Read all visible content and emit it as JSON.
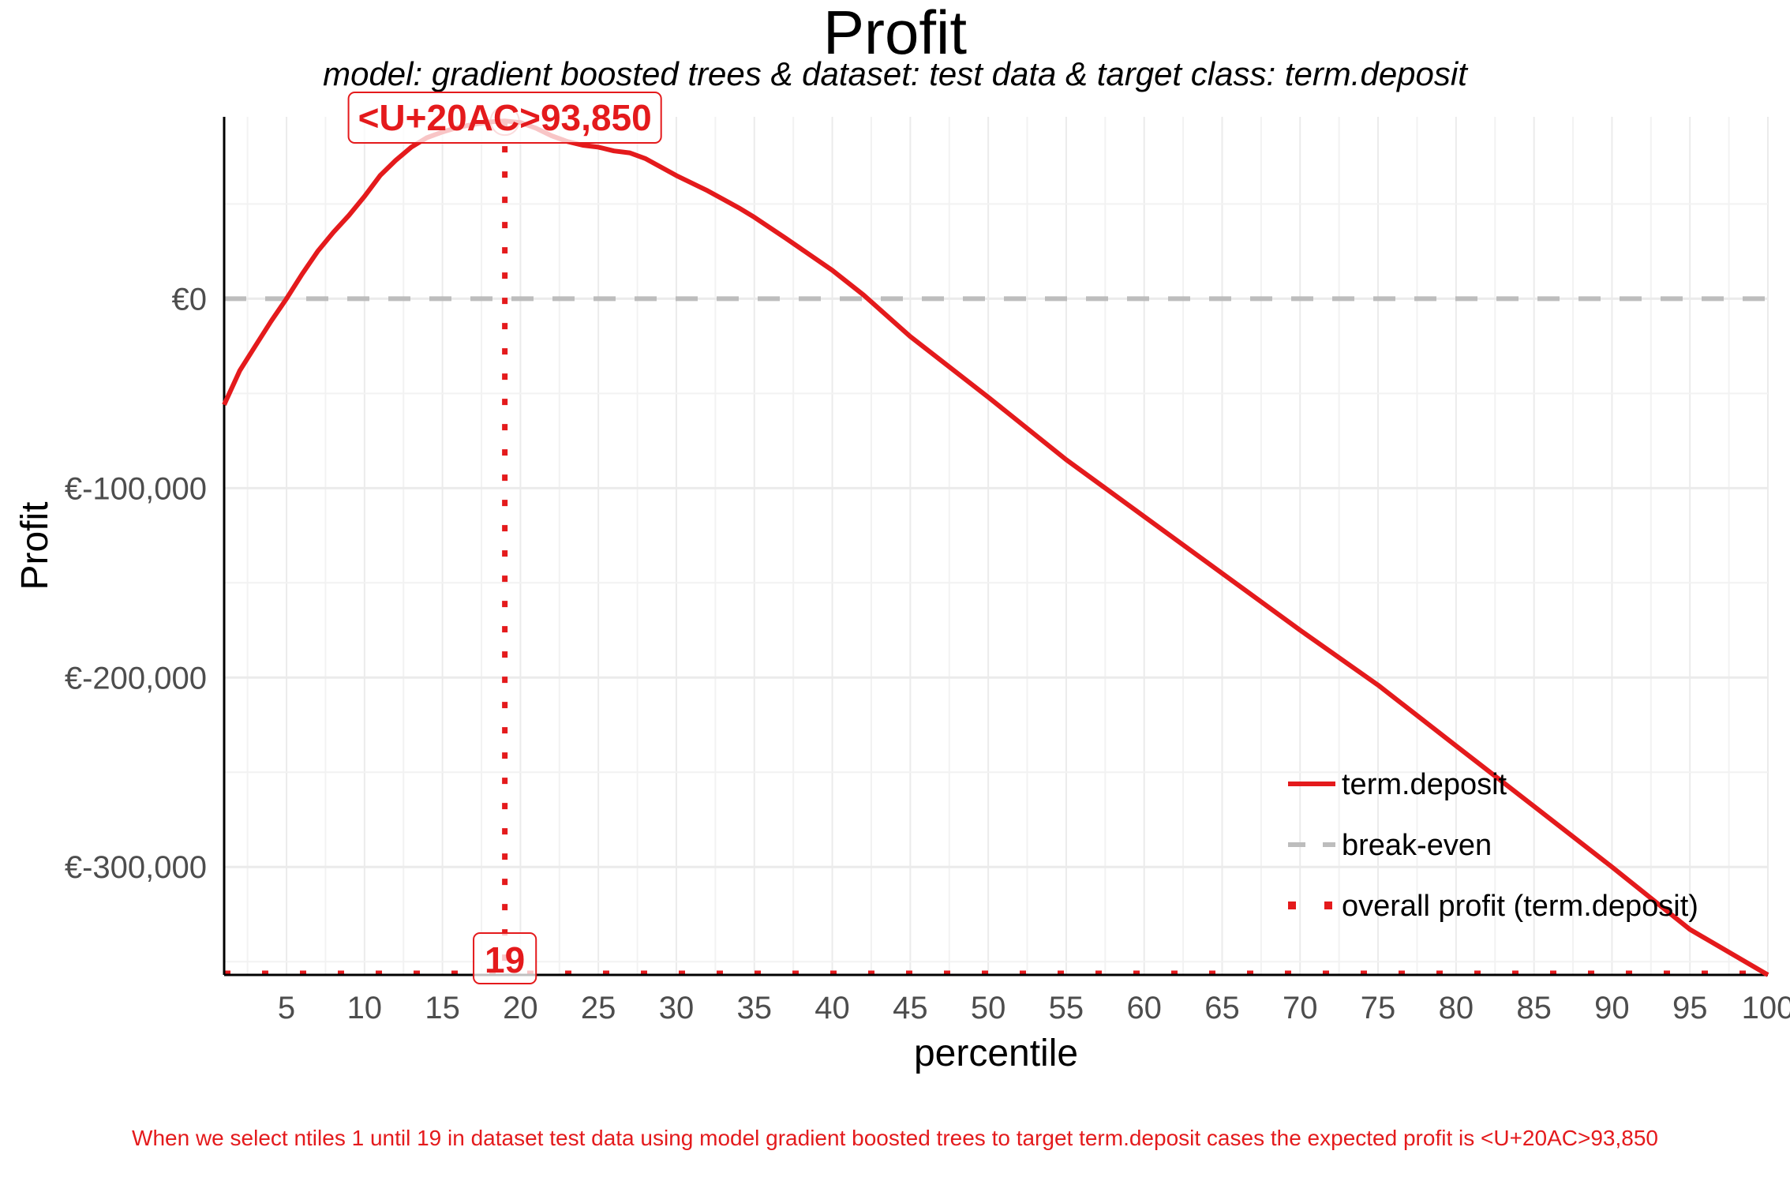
{
  "chart_data": {
    "type": "line",
    "title": "Profit",
    "subtitle": "model: gradient boosted trees  &  dataset: test data  &  target class: term.deposit",
    "xlabel": "percentile",
    "ylabel": "Profit",
    "xlim": [
      1,
      100
    ],
    "ylim": [
      -357000,
      96000
    ],
    "x_ticks": [
      5,
      10,
      15,
      20,
      25,
      30,
      35,
      40,
      45,
      50,
      55,
      60,
      65,
      70,
      75,
      80,
      85,
      90,
      95,
      100
    ],
    "y_ticks": [
      {
        "value": 0,
        "label": "€0"
      },
      {
        "value": -100000,
        "label": "€-100,000"
      },
      {
        "value": -200000,
        "label": "€-200,000"
      },
      {
        "value": -300000,
        "label": "€-300,000"
      }
    ],
    "grid": true,
    "legend_position": "bottom-right",
    "series": [
      {
        "name": "term.deposit",
        "color": "#e41a1c",
        "style": "solid",
        "x": [
          1,
          2,
          3,
          4,
          5,
          6,
          7,
          8,
          9,
          10,
          11,
          12,
          13,
          14,
          15,
          16,
          17,
          18,
          19,
          20,
          21,
          22,
          23,
          24,
          25,
          26,
          27,
          28,
          30,
          32,
          34,
          35,
          37,
          40,
          42,
          45,
          50,
          55,
          60,
          65,
          70,
          75,
          80,
          85,
          90,
          95,
          100
        ],
        "y": [
          -56000,
          -38000,
          -25000,
          -12000,
          0,
          13000,
          25000,
          35000,
          44000,
          54000,
          65000,
          73000,
          80000,
          85000,
          88000,
          90500,
          92000,
          93300,
          93850,
          93000,
          90000,
          86000,
          83000,
          81000,
          80000,
          78000,
          77000,
          74000,
          65000,
          57000,
          48000,
          43000,
          32000,
          15000,
          2000,
          -20000,
          -52000,
          -85000,
          -115000,
          -145000,
          -175000,
          -204000,
          -236000,
          -268000,
          -300000,
          -333000,
          -357000
        ]
      },
      {
        "name": "break-even",
        "color": "#bdbdbd",
        "style": "dashed",
        "y_constant": 0
      },
      {
        "name": "overall profit (term.deposit)",
        "color": "#e41a1c",
        "style": "dotted",
        "x_constant": 19
      }
    ],
    "annotations": [
      {
        "text": "<U+20AC>93,850",
        "x": 19,
        "y": 93850,
        "color": "#e41a1c"
      },
      {
        "text": "19",
        "x": 19,
        "color": "#e41a1c"
      }
    ],
    "caption": "When we select ntiles 1 until 19 in dataset test data using model gradient boosted trees to target term.deposit cases the expected profit is <U+20AC>93,850"
  }
}
